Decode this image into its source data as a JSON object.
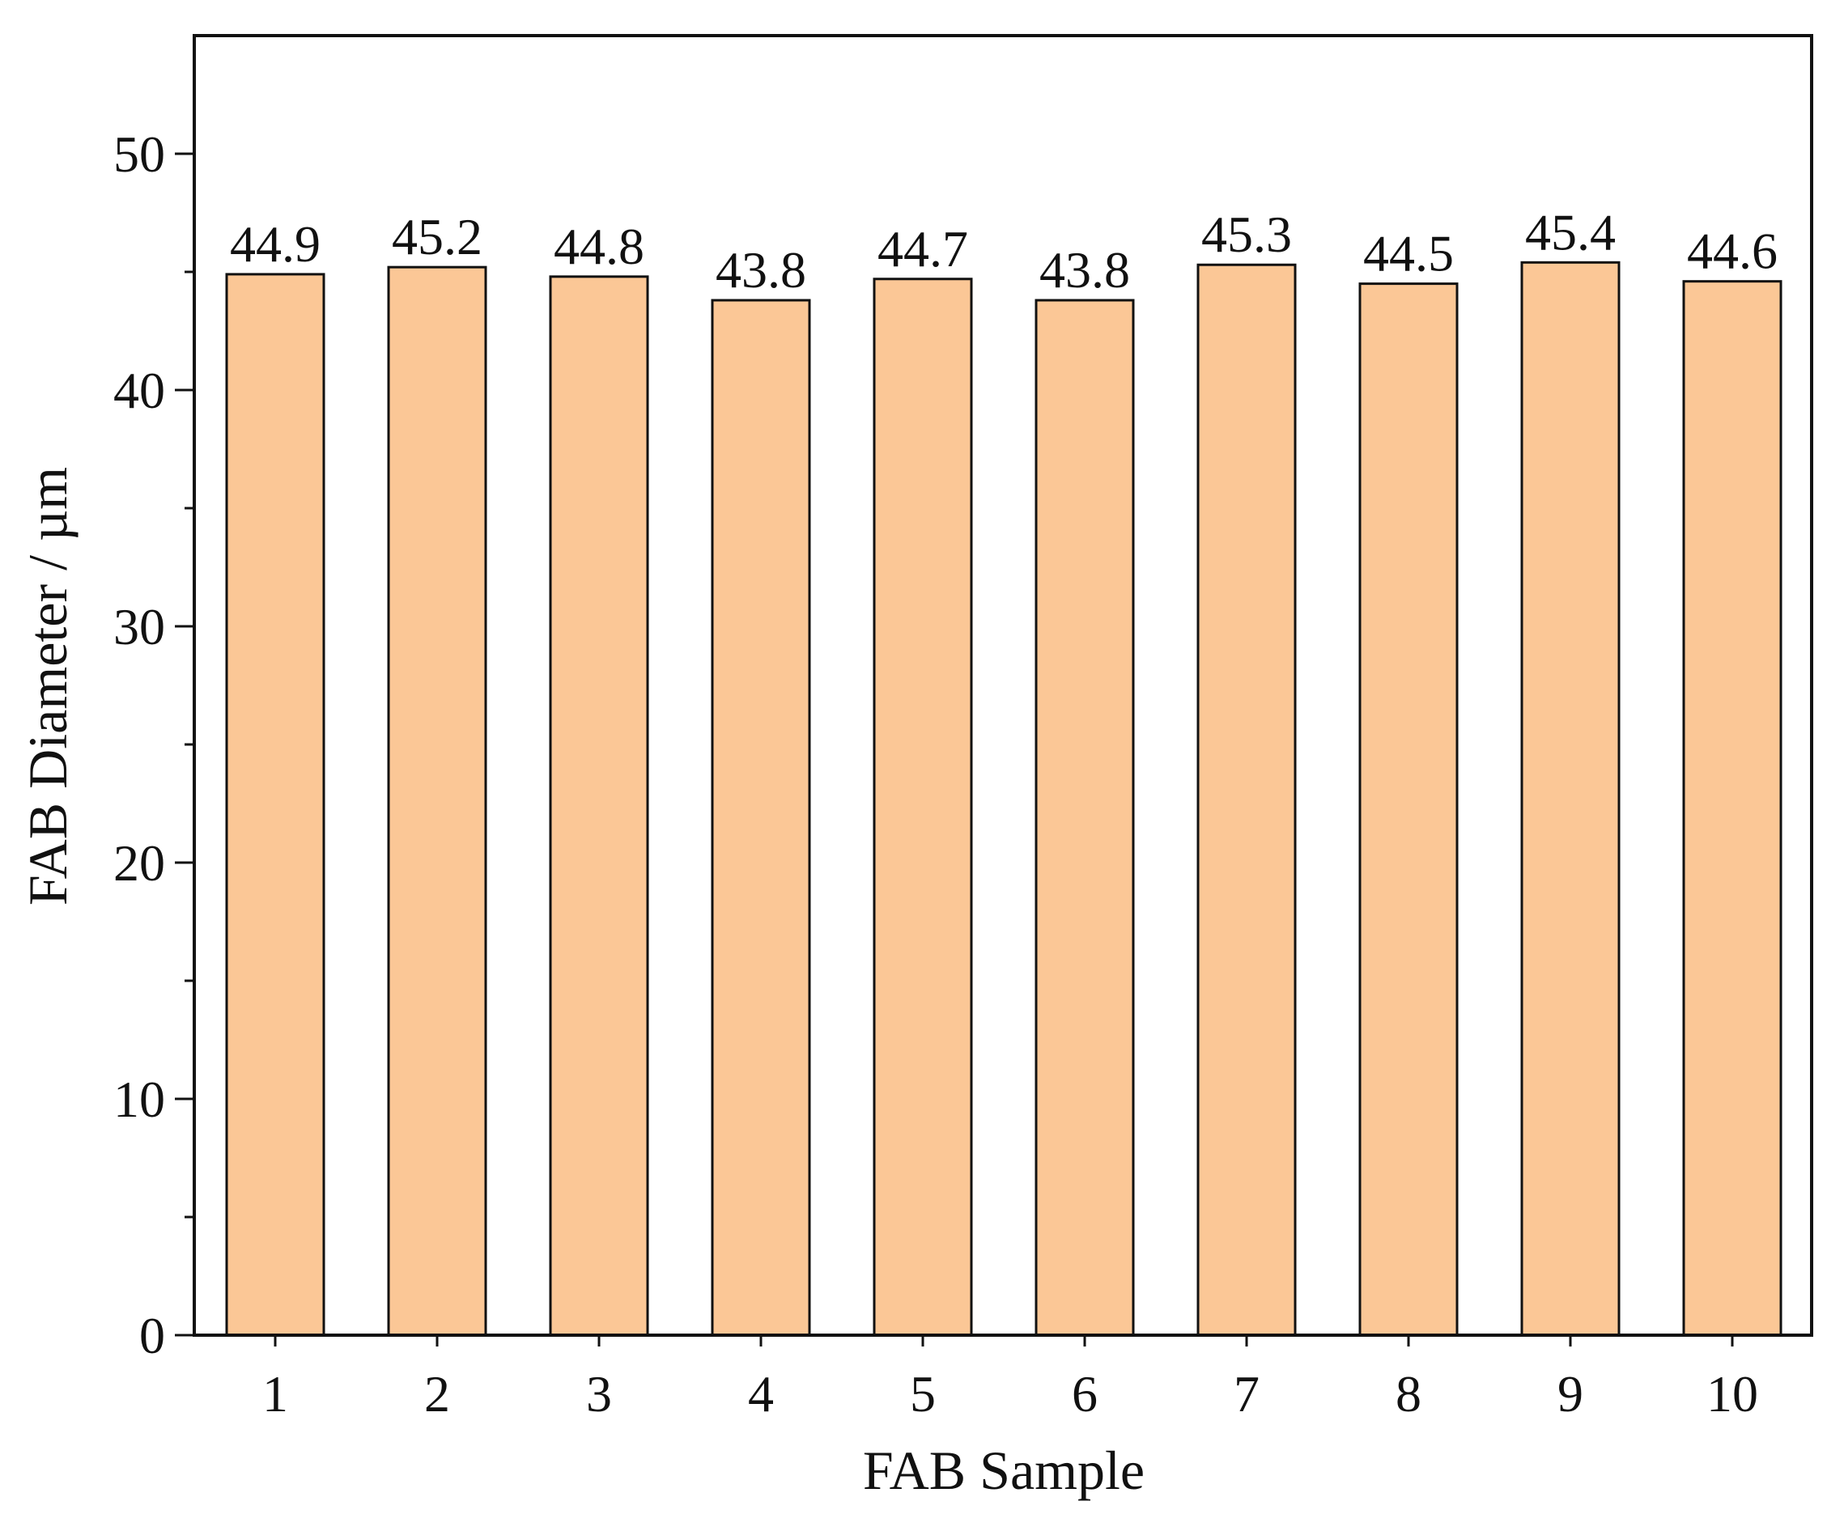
{
  "chart_data": {
    "type": "bar",
    "title": "",
    "xlabel": "FAB Sample",
    "ylabel": "FAB Diameter / µm",
    "categories": [
      "1",
      "2",
      "3",
      "4",
      "5",
      "6",
      "7",
      "8",
      "9",
      "10"
    ],
    "values": [
      44.9,
      45.2,
      44.8,
      43.8,
      44.7,
      43.8,
      45.3,
      44.5,
      45.4,
      44.6
    ],
    "data_labels": [
      "44.9",
      "45.2",
      "44.8",
      "43.8",
      "44.7",
      "43.8",
      "45.3",
      "44.5",
      "45.4",
      "44.6"
    ],
    "ylim": [
      0,
      55
    ],
    "yticks": [
      0,
      10,
      20,
      30,
      40,
      50
    ],
    "yticks_minor": [
      5,
      15,
      25,
      35,
      45
    ],
    "grid": false,
    "legend": "none",
    "colors": {
      "bar_fill": "#fbc796",
      "bar_stroke": "#111111",
      "axis": "#111111",
      "text": "#111111",
      "background": "#ffffff"
    }
  }
}
